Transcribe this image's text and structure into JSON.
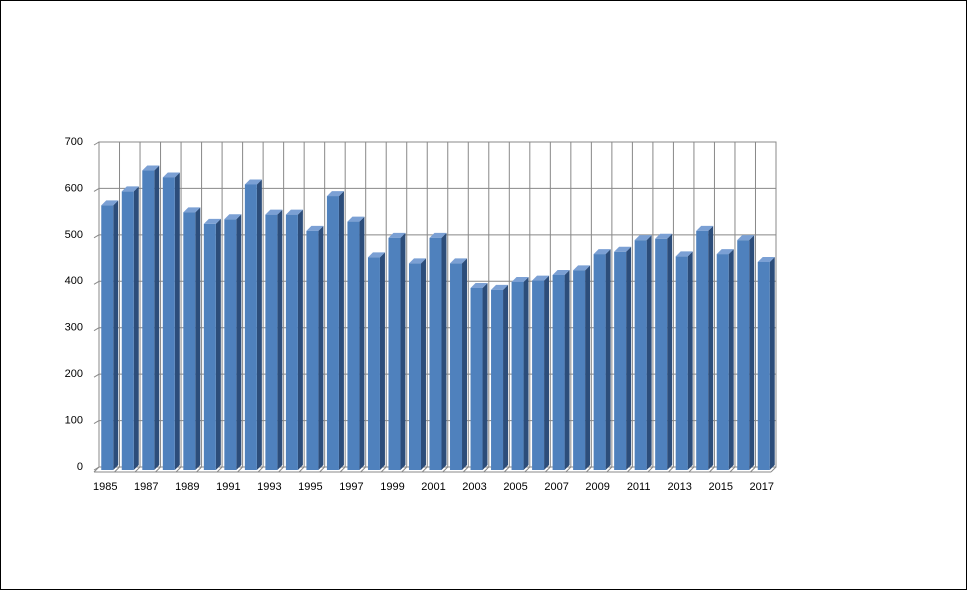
{
  "chart_data": {
    "type": "bar",
    "categories": [
      "1985",
      null,
      "1987",
      null,
      "1989",
      null,
      "1991",
      null,
      "1993",
      null,
      "1995",
      null,
      "1997",
      null,
      "1999",
      null,
      "2001",
      null,
      "2003",
      null,
      "2005",
      null,
      "2007",
      null,
      "2009",
      null,
      "2011",
      null,
      "2013",
      null,
      "2015",
      null,
      "2017"
    ],
    "values": [
      570,
      600,
      645,
      630,
      555,
      530,
      540,
      615,
      550,
      550,
      515,
      590,
      535,
      458,
      500,
      445,
      500,
      445,
      392,
      388,
      405,
      408,
      420,
      430,
      465,
      470,
      495,
      498,
      460,
      515,
      465,
      495,
      448
    ],
    "color": "#4f81bd",
    "ylim": [
      0,
      700
    ],
    "yticks": [
      0,
      100,
      200,
      300,
      400,
      500,
      600,
      700
    ],
    "grid": true
  }
}
